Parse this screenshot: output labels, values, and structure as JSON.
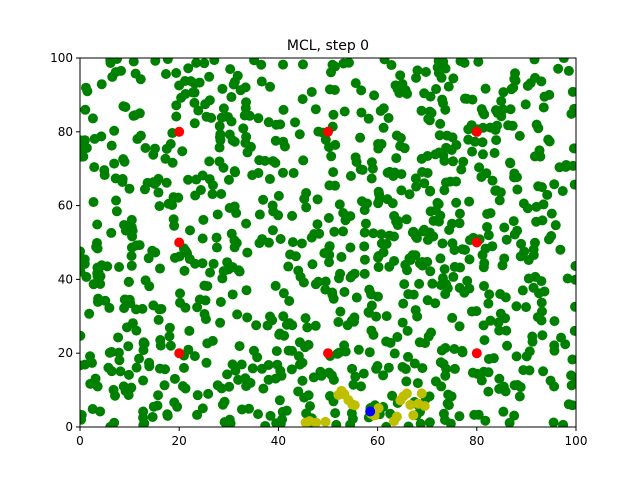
{
  "chart_data": {
    "type": "scatter",
    "title": "MCL, step 0",
    "xlabel": "",
    "ylabel": "",
    "xlim": [
      0,
      100
    ],
    "ylim": [
      0,
      100
    ],
    "xticks": [
      0,
      20,
      40,
      60,
      80,
      100
    ],
    "yticks": [
      0,
      20,
      40,
      60,
      80,
      100
    ],
    "grid": false,
    "colors": {
      "particles": "#008000",
      "landmarks": "#ff0000",
      "estimate": "#bfbf00",
      "robot": "#0000ff"
    },
    "series": [
      {
        "role": "particles",
        "note_count": 1000,
        "seed": 7
      },
      {
        "role": "landmarks",
        "x": [
          20,
          50,
          80,
          20,
          80,
          20,
          50,
          80
        ],
        "y": [
          80,
          80,
          80,
          50,
          50,
          20,
          20,
          20
        ]
      },
      {
        "role": "estimate",
        "x": [
          45.5,
          46.3,
          47.6,
          49.5,
          52.1,
          52.7,
          53.3,
          54.1,
          54.9,
          55.4,
          58.7,
          59.4,
          60.2,
          63.3,
          63.9,
          64.6,
          65.2,
          65.9,
          66.6,
          67.2,
          68.2,
          68.9,
          69.5
        ],
        "y": [
          1.2,
          1.6,
          1.2,
          1.4,
          8.7,
          9.8,
          8.9,
          7.3,
          6.1,
          5.9,
          3.6,
          3.1,
          5.1,
          1.6,
          2.8,
          7.2,
          8.3,
          9.1,
          6.0,
          3.2,
          6.3,
          9.1,
          5.7
        ]
      },
      {
        "role": "robot",
        "x": [
          58.5
        ],
        "y": [
          4.2
        ]
      }
    ]
  }
}
